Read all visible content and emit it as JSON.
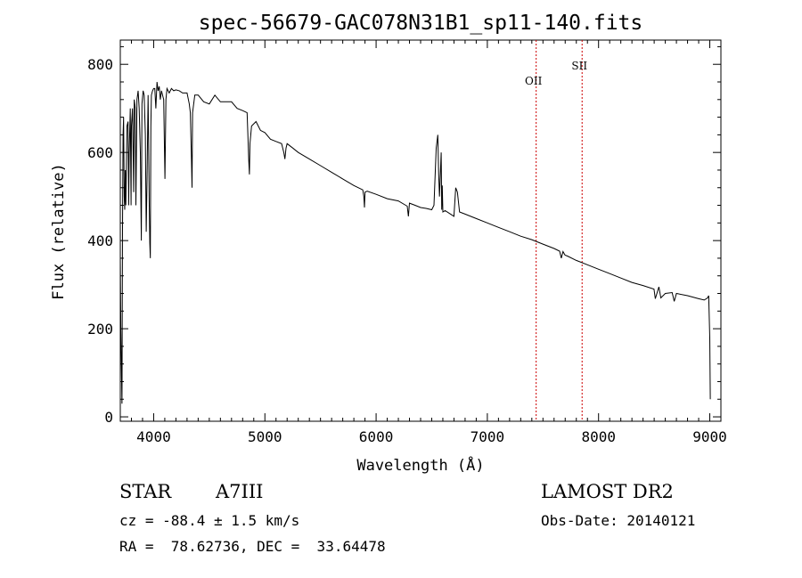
{
  "chart_data": {
    "type": "line",
    "title": "spec-56679-GAC078N31B1_sp11-140.fits",
    "xlabel": "Wavelength (Å)",
    "ylabel": "Flux (relative)",
    "xlim": [
      3700,
      9100
    ],
    "ylim": [
      -10,
      855
    ],
    "xticks": [
      4000,
      5000,
      6000,
      7000,
      8000,
      9000
    ],
    "yticks": [
      0,
      200,
      400,
      600,
      800
    ],
    "grid": false,
    "series": [
      {
        "color": "#000000",
        "x": [
          3700,
          3705,
          3710,
          3715,
          3720,
          3725,
          3730,
          3735,
          3740,
          3745,
          3750,
          3760,
          3770,
          3775,
          3780,
          3790,
          3797,
          3800,
          3810,
          3820,
          3825,
          3835,
          3840,
          3850,
          3860,
          3870,
          3880,
          3889,
          3895,
          3905,
          3915,
          3925,
          3933,
          3940,
          3950,
          3960,
          3965,
          3970,
          3975,
          3980,
          3990,
          4000,
          4010,
          4020,
          4030,
          4040,
          4050,
          4060,
          4070,
          4080,
          4090,
          4101,
          4110,
          4120,
          4140,
          4160,
          4180,
          4200,
          4230,
          4260,
          4300,
          4320,
          4330,
          4340,
          4345,
          4350,
          4370,
          4400,
          4450,
          4500,
          4550,
          4600,
          4650,
          4700,
          4750,
          4800,
          4840,
          4855,
          4861,
          4866,
          4880,
          4920,
          4960,
          5000,
          5050,
          5100,
          5150,
          5170,
          5180,
          5190,
          5200,
          5250,
          5300,
          5400,
          5500,
          5600,
          5700,
          5800,
          5880,
          5890,
          5895,
          5900,
          5920,
          6000,
          6100,
          6200,
          6280,
          6290,
          6300,
          6350,
          6400,
          6450,
          6500,
          6520,
          6540,
          6555,
          6563,
          6570,
          6585,
          6590,
          6595,
          6600,
          6620,
          6700,
          6716,
          6731,
          6750,
          6800,
          6900,
          7000,
          7100,
          7200,
          7300,
          7400,
          7500,
          7600,
          7650,
          7665,
          7680,
          7699,
          7720,
          7800,
          7900,
          8000,
          8100,
          8200,
          8300,
          8400,
          8498,
          8510,
          8542,
          8560,
          8600,
          8662,
          8680,
          8700,
          8800,
          8900,
          8950,
          8980,
          8990,
          9000,
          9005
        ],
        "values": [
          360,
          200,
          120,
          30,
          430,
          640,
          680,
          500,
          470,
          560,
          480,
          660,
          670,
          480,
          600,
          700,
          480,
          660,
          700,
          510,
          720,
          700,
          480,
          720,
          740,
          700,
          600,
          400,
          710,
          740,
          730,
          640,
          420,
          540,
          730,
          480,
          395,
          360,
          660,
          730,
          740,
          745,
          745,
          700,
          760,
          740,
          750,
          720,
          740,
          730,
          720,
          540,
          720,
          745,
          735,
          745,
          740,
          742,
          740,
          735,
          735,
          710,
          690,
          580,
          520,
          690,
          730,
          730,
          715,
          710,
          730,
          715,
          715,
          715,
          700,
          695,
          690,
          580,
          550,
          620,
          660,
          670,
          650,
          645,
          630,
          625,
          620,
          600,
          585,
          610,
          620,
          610,
          600,
          585,
          570,
          555,
          540,
          525,
          515,
          500,
          475,
          510,
          512,
          505,
          495,
          490,
          478,
          455,
          485,
          480,
          475,
          473,
          470,
          480,
          610,
          640,
          550,
          500,
          600,
          470,
          525,
          465,
          468,
          455,
          520,
          510,
          465,
          460,
          450,
          440,
          430,
          420,
          410,
          402,
          392,
          382,
          376,
          360,
          375,
          367,
          365,
          355,
          345,
          335,
          325,
          315,
          305,
          298,
          290,
          268,
          295,
          270,
          280,
          282,
          262,
          280,
          275,
          268,
          265,
          270,
          275,
          180,
          40
        ]
      }
    ],
    "annotations": [
      {
        "label": "OII",
        "x": 7439
      },
      {
        "label": "SII",
        "x": 7852
      }
    ]
  },
  "info": {
    "class_label": "STAR",
    "subclass": "A7III",
    "survey": "LAMOST DR2",
    "cz": "cz = -88.4 ± 1.5 km/s",
    "obs_date": "Obs-Date: 20140121",
    "radec": "RA =  78.62736, DEC =  33.64478"
  },
  "colors": {
    "line": "#000000",
    "marker_line": "#cc0000"
  }
}
